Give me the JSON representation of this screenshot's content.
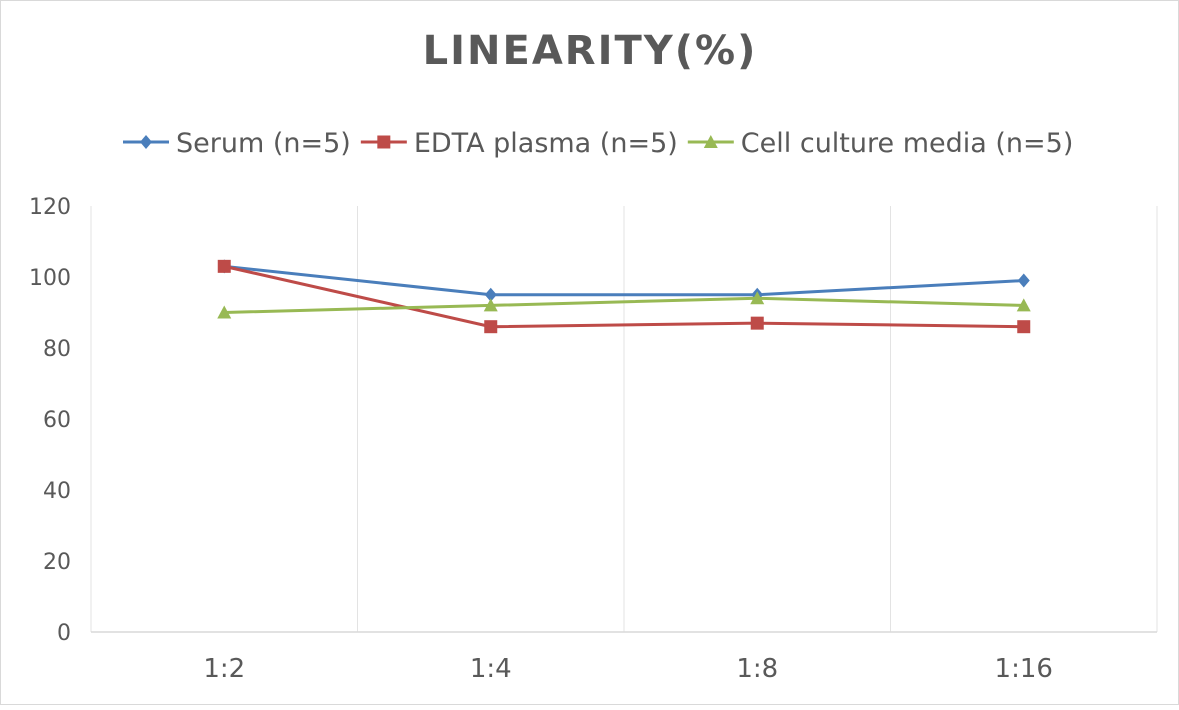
{
  "chart_data": {
    "type": "line",
    "title": "LINEARITY(%)",
    "xlabel": "",
    "ylabel": "",
    "categories": [
      "1:2",
      "1:4",
      "1:8",
      "1:16"
    ],
    "ylim": [
      0,
      120
    ],
    "yticks": [
      0,
      20,
      40,
      60,
      80,
      100,
      120
    ],
    "grid": "vertical category separators",
    "legend": "top",
    "series": [
      {
        "name": "Serum (n=5)",
        "values": [
          103,
          95,
          95,
          99
        ],
        "color": "#4a7ebb",
        "marker": "diamond"
      },
      {
        "name": "EDTA plasma (n=5)",
        "values": [
          103,
          86,
          87,
          86
        ],
        "color": "#be4b48",
        "marker": "square"
      },
      {
        "name": "Cell culture media (n=5)",
        "values": [
          90,
          92,
          94,
          92
        ],
        "color": "#98b954",
        "marker": "triangle"
      }
    ]
  }
}
